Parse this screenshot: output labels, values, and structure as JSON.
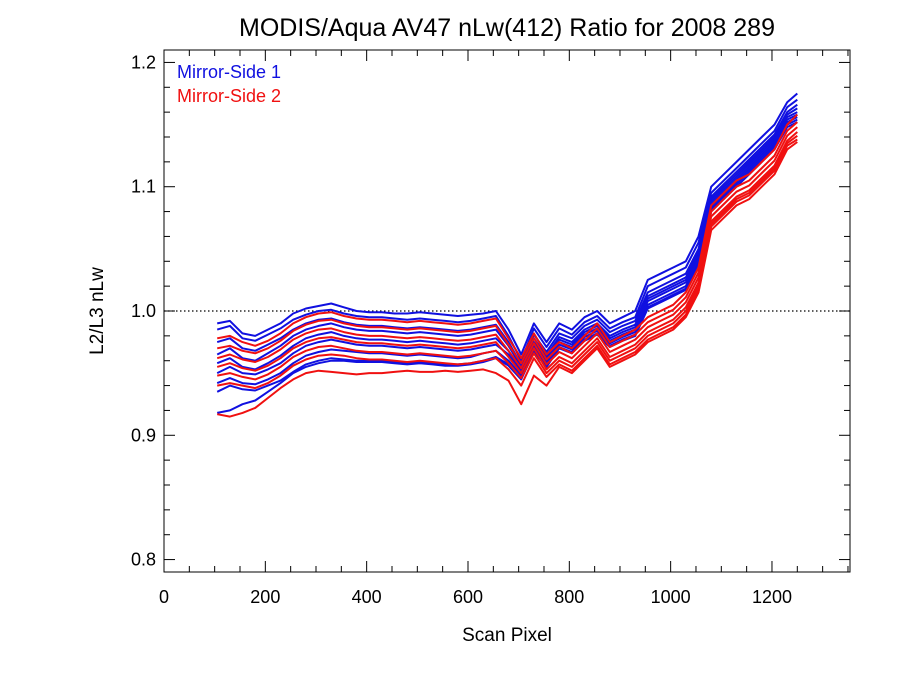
{
  "chart_data": {
    "type": "line",
    "title": "MODIS/Aqua AV47 nLw(412) Ratio for 2008 289",
    "xlabel": "Scan Pixel",
    "ylabel": "L2/L3 nLw",
    "xlim": [
      0,
      1354
    ],
    "ylim": [
      0.79,
      1.21
    ],
    "xticks": [
      0,
      200,
      400,
      600,
      800,
      1000,
      1200
    ],
    "xtick_labels": [
      "0",
      "200",
      "400",
      "600",
      "800",
      "1000",
      "1200"
    ],
    "yticks": [
      0.8,
      0.9,
      1.0,
      1.1,
      1.2
    ],
    "ytick_labels": [
      "0.8",
      "0.9",
      "1.0",
      "1.1",
      "1.2"
    ],
    "reference_line": {
      "y": 1.0,
      "style": "dotted"
    },
    "legend": {
      "placement": "top-left"
    },
    "x": [
      105,
      130,
      155,
      180,
      205,
      230,
      255,
      280,
      305,
      330,
      355,
      380,
      405,
      430,
      455,
      480,
      505,
      530,
      555,
      580,
      605,
      630,
      655,
      680,
      705,
      730,
      755,
      780,
      805,
      830,
      855,
      880,
      905,
      930,
      955,
      980,
      1005,
      1030,
      1055,
      1080,
      1105,
      1130,
      1155,
      1180,
      1205,
      1230,
      1250
    ],
    "series": [
      {
        "name": "Mirror-Side 1",
        "color": "#1010e0",
        "lines": [
          [
            0.99,
            0.992,
            0.982,
            0.98,
            0.985,
            0.99,
            0.998,
            1.002,
            1.004,
            1.006,
            1.003,
            1.0,
            0.999,
            0.999,
            0.998,
            0.998,
            0.999,
            0.998,
            0.997,
            0.996,
            0.997,
            0.998,
            1.0,
            0.985,
            0.965,
            0.99,
            0.975,
            0.99,
            0.985,
            0.995,
            1.0,
            0.99,
            0.995,
            1.0,
            1.025,
            1.03,
            1.035,
            1.04,
            1.06,
            1.1,
            1.11,
            1.12,
            1.13,
            1.14,
            1.15,
            1.168,
            1.175
          ],
          [
            0.985,
            0.988,
            0.978,
            0.976,
            0.981,
            0.986,
            0.993,
            0.997,
            1.0,
            1.001,
            0.998,
            0.996,
            0.995,
            0.995,
            0.994,
            0.993,
            0.994,
            0.993,
            0.992,
            0.991,
            0.992,
            0.994,
            0.996,
            0.98,
            0.96,
            0.986,
            0.971,
            0.986,
            0.981,
            0.991,
            0.996,
            0.986,
            0.991,
            0.995,
            1.02,
            1.025,
            1.03,
            1.035,
            1.055,
            1.095,
            1.105,
            1.115,
            1.125,
            1.135,
            1.145,
            1.164,
            1.17
          ],
          [
            0.975,
            0.978,
            0.97,
            0.968,
            0.973,
            0.978,
            0.985,
            0.99,
            0.993,
            0.994,
            0.991,
            0.989,
            0.988,
            0.988,
            0.987,
            0.986,
            0.987,
            0.986,
            0.985,
            0.984,
            0.985,
            0.987,
            0.989,
            0.975,
            0.957,
            0.981,
            0.967,
            0.982,
            0.978,
            0.988,
            0.993,
            0.983,
            0.988,
            0.992,
            1.015,
            1.02,
            1.025,
            1.03,
            1.05,
            1.092,
            1.102,
            1.112,
            1.122,
            1.132,
            1.142,
            1.16,
            1.166
          ],
          [
            0.965,
            0.97,
            0.962,
            0.96,
            0.966,
            0.972,
            0.98,
            0.985,
            0.988,
            0.99,
            0.987,
            0.985,
            0.984,
            0.984,
            0.983,
            0.982,
            0.983,
            0.982,
            0.981,
            0.98,
            0.981,
            0.983,
            0.985,
            0.972,
            0.955,
            0.978,
            0.964,
            0.979,
            0.975,
            0.985,
            0.99,
            0.98,
            0.985,
            0.989,
            1.012,
            1.017,
            1.022,
            1.027,
            1.047,
            1.09,
            1.1,
            1.11,
            1.12,
            1.13,
            1.14,
            1.158,
            1.163
          ],
          [
            0.958,
            0.962,
            0.955,
            0.953,
            0.958,
            0.964,
            0.972,
            0.978,
            0.981,
            0.983,
            0.98,
            0.978,
            0.977,
            0.977,
            0.976,
            0.975,
            0.976,
            0.975,
            0.974,
            0.973,
            0.974,
            0.976,
            0.978,
            0.968,
            0.952,
            0.975,
            0.962,
            0.977,
            0.973,
            0.983,
            0.988,
            0.978,
            0.983,
            0.987,
            1.01,
            1.015,
            1.02,
            1.025,
            1.045,
            1.088,
            1.098,
            1.108,
            1.118,
            1.128,
            1.138,
            1.156,
            1.16
          ],
          [
            0.95,
            0.955,
            0.95,
            0.949,
            0.953,
            0.958,
            0.966,
            0.972,
            0.975,
            0.977,
            0.975,
            0.973,
            0.972,
            0.972,
            0.971,
            0.97,
            0.971,
            0.97,
            0.969,
            0.968,
            0.969,
            0.971,
            0.973,
            0.965,
            0.95,
            0.972,
            0.96,
            0.975,
            0.971,
            0.981,
            0.986,
            0.976,
            0.981,
            0.985,
            1.008,
            1.013,
            1.018,
            1.023,
            1.043,
            1.086,
            1.096,
            1.106,
            1.116,
            1.126,
            1.136,
            1.154,
            1.158
          ],
          [
            0.942,
            0.946,
            0.942,
            0.941,
            0.945,
            0.95,
            0.958,
            0.964,
            0.967,
            0.969,
            0.968,
            0.967,
            0.966,
            0.966,
            0.965,
            0.964,
            0.965,
            0.964,
            0.963,
            0.962,
            0.963,
            0.966,
            0.968,
            0.96,
            0.948,
            0.97,
            0.958,
            0.973,
            0.969,
            0.979,
            0.984,
            0.974,
            0.979,
            0.983,
            1.005,
            1.01,
            1.015,
            1.02,
            1.04,
            1.084,
            1.094,
            1.104,
            1.114,
            1.124,
            1.134,
            1.152,
            1.156
          ],
          [
            0.935,
            0.94,
            0.937,
            0.936,
            0.94,
            0.944,
            0.951,
            0.957,
            0.96,
            0.962,
            0.961,
            0.96,
            0.96,
            0.96,
            0.959,
            0.958,
            0.959,
            0.958,
            0.957,
            0.957,
            0.958,
            0.96,
            0.963,
            0.957,
            0.946,
            0.968,
            0.956,
            0.971,
            0.967,
            0.977,
            0.982,
            0.972,
            0.977,
            0.981,
            1.003,
            1.008,
            1.013,
            1.018,
            1.038,
            1.082,
            1.092,
            1.102,
            1.112,
            1.122,
            1.132,
            1.15,
            1.154
          ],
          [
            0.918,
            0.92,
            0.925,
            0.928,
            0.935,
            0.942,
            0.95,
            0.955,
            0.958,
            0.96,
            0.96,
            0.959,
            0.959,
            0.959,
            0.958,
            0.957,
            0.958,
            0.957,
            0.956,
            0.956,
            0.957,
            0.959,
            0.962,
            0.956,
            0.945,
            0.967,
            0.955,
            0.97,
            0.966,
            0.976,
            0.981,
            0.971,
            0.976,
            0.98,
            1.002,
            1.007,
            1.012,
            1.017,
            1.037,
            1.08,
            1.09,
            1.1,
            1.11,
            1.12,
            1.13,
            1.148,
            1.152
          ]
        ]
      },
      {
        "name": "Mirror-Side 2",
        "color": "#f01010",
        "lines": [
          [
            0.978,
            0.98,
            0.975,
            0.972,
            0.976,
            0.982,
            0.99,
            0.995,
            0.998,
            0.999,
            0.996,
            0.994,
            0.993,
            0.993,
            0.992,
            0.991,
            0.992,
            0.991,
            0.99,
            0.989,
            0.99,
            0.992,
            0.994,
            0.978,
            0.962,
            0.982,
            0.965,
            0.975,
            0.97,
            0.98,
            0.99,
            0.975,
            0.98,
            0.985,
            0.995,
            1.0,
            1.005,
            1.015,
            1.035,
            1.085,
            1.095,
            1.105,
            1.11,
            1.12,
            1.13,
            1.15,
            1.158
          ],
          [
            0.97,
            0.972,
            0.968,
            0.966,
            0.97,
            0.976,
            0.984,
            0.989,
            0.992,
            0.993,
            0.99,
            0.988,
            0.987,
            0.987,
            0.986,
            0.985,
            0.986,
            0.985,
            0.984,
            0.983,
            0.984,
            0.986,
            0.988,
            0.973,
            0.958,
            0.978,
            0.961,
            0.971,
            0.966,
            0.976,
            0.986,
            0.971,
            0.976,
            0.981,
            0.991,
            0.996,
            1.001,
            1.011,
            1.031,
            1.08,
            1.09,
            1.1,
            1.105,
            1.115,
            1.125,
            1.145,
            1.152
          ],
          [
            0.962,
            0.965,
            0.961,
            0.959,
            0.963,
            0.969,
            0.977,
            0.982,
            0.985,
            0.986,
            0.983,
            0.981,
            0.98,
            0.98,
            0.979,
            0.978,
            0.979,
            0.978,
            0.977,
            0.976,
            0.977,
            0.979,
            0.981,
            0.968,
            0.954,
            0.974,
            0.957,
            0.967,
            0.962,
            0.972,
            0.982,
            0.967,
            0.972,
            0.977,
            0.987,
            0.992,
            0.997,
            1.007,
            1.027,
            1.076,
            1.086,
            1.096,
            1.101,
            1.111,
            1.121,
            1.141,
            1.148
          ],
          [
            0.955,
            0.958,
            0.954,
            0.952,
            0.956,
            0.962,
            0.97,
            0.975,
            0.978,
            0.979,
            0.977,
            0.975,
            0.974,
            0.974,
            0.973,
            0.972,
            0.973,
            0.972,
            0.971,
            0.97,
            0.971,
            0.973,
            0.975,
            0.963,
            0.95,
            0.97,
            0.953,
            0.963,
            0.958,
            0.968,
            0.978,
            0.963,
            0.968,
            0.973,
            0.983,
            0.988,
            0.993,
            1.003,
            1.023,
            1.072,
            1.082,
            1.092,
            1.097,
            1.107,
            1.117,
            1.137,
            1.144
          ],
          [
            0.948,
            0.95,
            0.947,
            0.945,
            0.949,
            0.955,
            0.963,
            0.968,
            0.971,
            0.972,
            0.97,
            0.968,
            0.967,
            0.967,
            0.966,
            0.965,
            0.966,
            0.965,
            0.964,
            0.963,
            0.964,
            0.966,
            0.968,
            0.958,
            0.946,
            0.966,
            0.95,
            0.96,
            0.955,
            0.965,
            0.975,
            0.96,
            0.965,
            0.97,
            0.98,
            0.985,
            0.99,
            1.0,
            1.02,
            1.07,
            1.08,
            1.09,
            1.095,
            1.105,
            1.115,
            1.135,
            1.141
          ],
          [
            0.94,
            0.942,
            0.94,
            0.938,
            0.942,
            0.948,
            0.956,
            0.961,
            0.964,
            0.965,
            0.964,
            0.962,
            0.961,
            0.961,
            0.96,
            0.959,
            0.96,
            0.959,
            0.958,
            0.957,
            0.958,
            0.96,
            0.962,
            0.953,
            0.94,
            0.962,
            0.947,
            0.957,
            0.952,
            0.962,
            0.972,
            0.957,
            0.962,
            0.967,
            0.977,
            0.982,
            0.987,
            0.997,
            1.017,
            1.068,
            1.078,
            1.088,
            1.093,
            1.103,
            1.113,
            1.133,
            1.138
          ],
          [
            0.917,
            0.915,
            0.918,
            0.922,
            0.93,
            0.938,
            0.945,
            0.95,
            0.952,
            0.951,
            0.95,
            0.949,
            0.95,
            0.95,
            0.951,
            0.952,
            0.951,
            0.951,
            0.952,
            0.951,
            0.952,
            0.953,
            0.95,
            0.944,
            0.925,
            0.948,
            0.94,
            0.955,
            0.95,
            0.96,
            0.97,
            0.955,
            0.96,
            0.965,
            0.975,
            0.98,
            0.985,
            0.995,
            1.015,
            1.065,
            1.075,
            1.085,
            1.09,
            1.1,
            1.11,
            1.13,
            1.136
          ]
        ]
      }
    ]
  }
}
